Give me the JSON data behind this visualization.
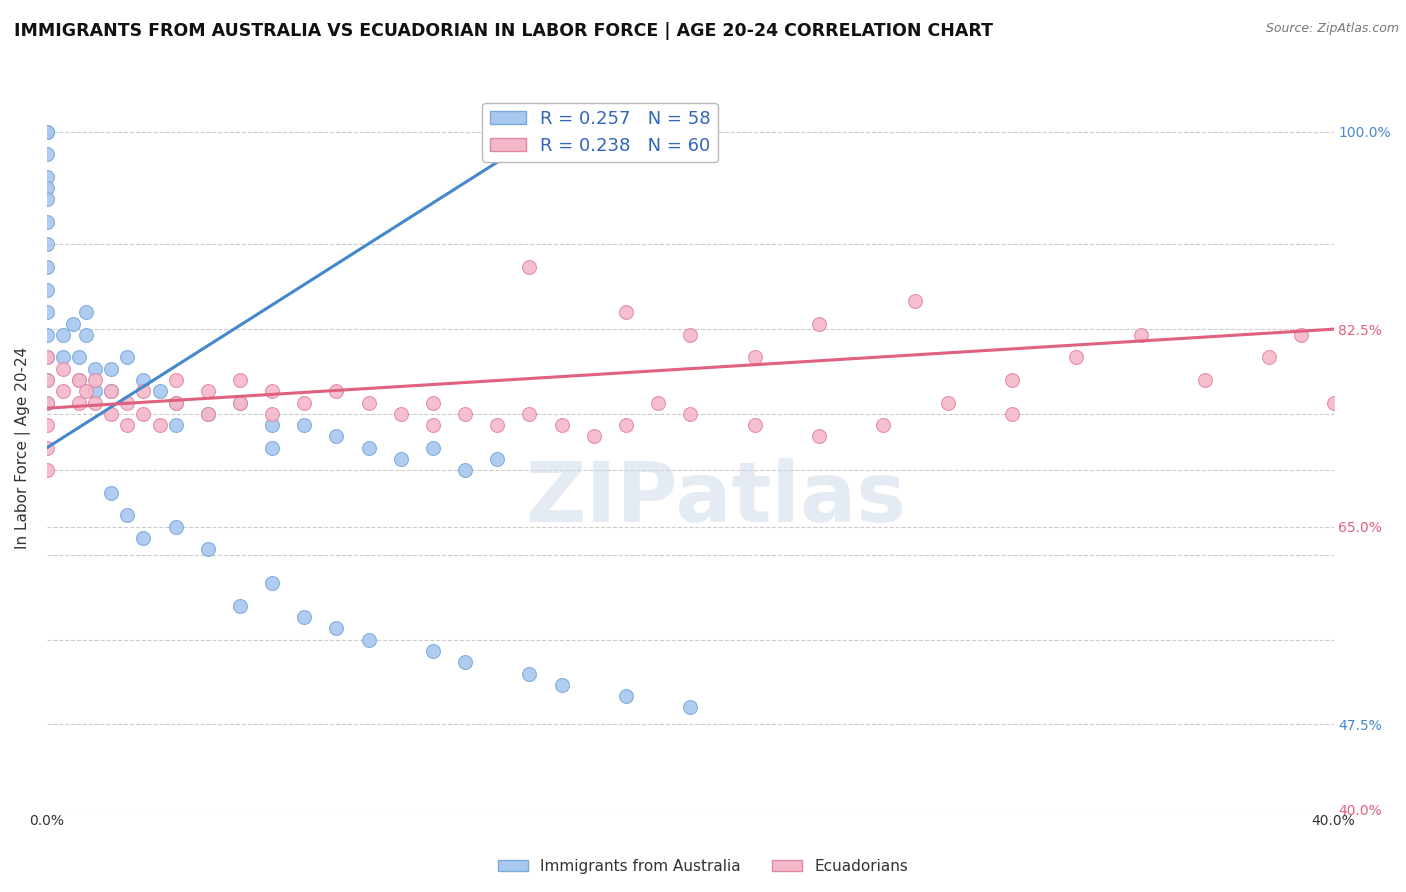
{
  "title": "IMMIGRANTS FROM AUSTRALIA VS ECUADORIAN IN LABOR FORCE | AGE 20-24 CORRELATION CHART",
  "source": "Source: ZipAtlas.com",
  "ylabel": "In Labor Force | Age 20-24",
  "xlim": [
    0.0,
    0.4
  ],
  "ylim": [
    0.4,
    1.04
  ],
  "watermark_text": "ZIPatlas",
  "legend_entries": [
    {
      "label": "R = 0.257   N = 58",
      "color": "#a8c8f0"
    },
    {
      "label": "R = 0.238   N = 60",
      "color": "#f5b8c8"
    }
  ],
  "aus_color": "#a8c8f0",
  "aus_edge_color": "#7aaad8",
  "ecu_color": "#f5b8c8",
  "ecu_edge_color": "#e088a8",
  "trend_aus_color": "#4488cc",
  "trend_ecu_color": "#e06080",
  "background_color": "#ffffff",
  "grid_color": "#cccccc",
  "scatter_size": 100,
  "aus_trend_x": [
    0.0,
    0.155
  ],
  "aus_trend_y": [
    0.72,
    1.0
  ],
  "ecu_trend_x": [
    0.0,
    0.4
  ],
  "ecu_trend_y": [
    0.755,
    0.825
  ],
  "aus_x": [
    0.0,
    0.0,
    0.0,
    0.0,
    0.0,
    0.0,
    0.0,
    0.0,
    0.0,
    0.0,
    0.0,
    0.0,
    0.0,
    0.0,
    0.0,
    0.005,
    0.005,
    0.008,
    0.01,
    0.01,
    0.012,
    0.012,
    0.015,
    0.015,
    0.02,
    0.02,
    0.025,
    0.03,
    0.035,
    0.04,
    0.04,
    0.05,
    0.06,
    0.07,
    0.07,
    0.08,
    0.09,
    0.1,
    0.11,
    0.12,
    0.13,
    0.14,
    0.02,
    0.025,
    0.03,
    0.04,
    0.05,
    0.06,
    0.07,
    0.08,
    0.09,
    0.1,
    0.12,
    0.13,
    0.15,
    0.16,
    0.18,
    0.2
  ],
  "aus_y": [
    1.0,
    1.0,
    0.98,
    0.96,
    0.95,
    0.94,
    0.92,
    0.9,
    0.88,
    0.86,
    0.84,
    0.82,
    0.8,
    0.78,
    0.76,
    0.82,
    0.8,
    0.83,
    0.8,
    0.78,
    0.84,
    0.82,
    0.79,
    0.77,
    0.79,
    0.77,
    0.8,
    0.78,
    0.77,
    0.76,
    0.74,
    0.75,
    0.76,
    0.74,
    0.72,
    0.74,
    0.73,
    0.72,
    0.71,
    0.72,
    0.7,
    0.71,
    0.68,
    0.66,
    0.64,
    0.65,
    0.63,
    0.58,
    0.6,
    0.57,
    0.56,
    0.55,
    0.54,
    0.53,
    0.52,
    0.51,
    0.5,
    0.49
  ],
  "ecu_x": [
    0.0,
    0.0,
    0.0,
    0.0,
    0.0,
    0.0,
    0.005,
    0.005,
    0.01,
    0.01,
    0.012,
    0.015,
    0.015,
    0.02,
    0.02,
    0.025,
    0.025,
    0.03,
    0.03,
    0.035,
    0.04,
    0.04,
    0.05,
    0.05,
    0.06,
    0.06,
    0.07,
    0.07,
    0.08,
    0.09,
    0.1,
    0.11,
    0.12,
    0.12,
    0.13,
    0.14,
    0.15,
    0.16,
    0.17,
    0.18,
    0.19,
    0.2,
    0.22,
    0.24,
    0.26,
    0.28,
    0.3,
    0.15,
    0.18,
    0.2,
    0.22,
    0.24,
    0.27,
    0.3,
    0.32,
    0.34,
    0.36,
    0.38,
    0.39,
    0.4
  ],
  "ecu_y": [
    0.8,
    0.78,
    0.76,
    0.74,
    0.72,
    0.7,
    0.79,
    0.77,
    0.78,
    0.76,
    0.77,
    0.78,
    0.76,
    0.77,
    0.75,
    0.76,
    0.74,
    0.77,
    0.75,
    0.74,
    0.78,
    0.76,
    0.77,
    0.75,
    0.78,
    0.76,
    0.77,
    0.75,
    0.76,
    0.77,
    0.76,
    0.75,
    0.76,
    0.74,
    0.75,
    0.74,
    0.75,
    0.74,
    0.73,
    0.74,
    0.76,
    0.75,
    0.74,
    0.73,
    0.74,
    0.76,
    0.75,
    0.88,
    0.84,
    0.82,
    0.8,
    0.83,
    0.85,
    0.78,
    0.8,
    0.82,
    0.78,
    0.8,
    0.82,
    0.76
  ],
  "ytick_positions": [
    0.4,
    0.475,
    0.55,
    0.625,
    0.65,
    0.7,
    0.75,
    0.825,
    0.9,
    1.0
  ],
  "ytick_right_labels": [
    "40.0%",
    "47.5%",
    "",
    "",
    "65.0%",
    "",
    "",
    "82.5%",
    "",
    "100.0%"
  ],
  "ytick_right_colors": [
    "#e06080",
    "#4488cc",
    "",
    "",
    "#e06080",
    "",
    "",
    "#e06080",
    "",
    "#4488cc"
  ],
  "xtick_positions": [
    0.0,
    0.05,
    0.1,
    0.15,
    0.2,
    0.25,
    0.3,
    0.35,
    0.4
  ],
  "xtick_labels": [
    "0.0%",
    "",
    "",
    "",
    "",
    "",
    "",
    "",
    "40.0%"
  ]
}
